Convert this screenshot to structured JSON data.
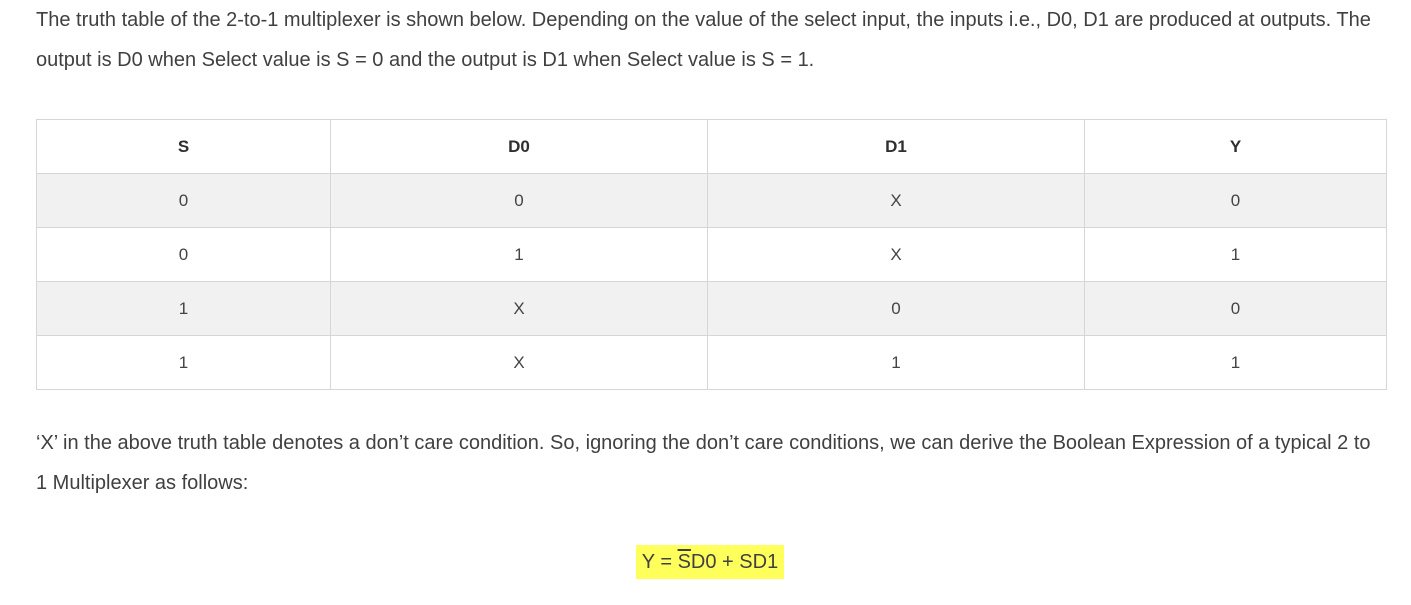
{
  "intro_text": "The truth table of the 2-to-1 multiplexer is shown below. Depending on the value of the select input, the inputs i.e., D0, D1 are produced at outputs. The output is D0 when Select value is S = 0 and the output is D1 when Select value is S = 1.",
  "table": {
    "headers": [
      "S",
      "D0",
      "D1",
      "Y"
    ],
    "rows": [
      [
        "0",
        "0",
        "X",
        "0"
      ],
      [
        "0",
        "1",
        "X",
        "1"
      ],
      [
        "1",
        "X",
        "0",
        "0"
      ],
      [
        "1",
        "X",
        "1",
        "1"
      ]
    ]
  },
  "note_text": "‘X’ in the above truth table denotes a don’t care condition. So, ignoring the don’t care conditions, we can derive the Boolean Expression of a typical 2 to 1 Multiplexer as follows:",
  "equation": {
    "prefix": "Y = ",
    "negated_var": "S",
    "rest": "D0 + SD1"
  },
  "colors": {
    "highlight": "#ffff5c",
    "alt_row": "#f1f1f1",
    "border": "#d6d6d6",
    "text": "#404040"
  }
}
